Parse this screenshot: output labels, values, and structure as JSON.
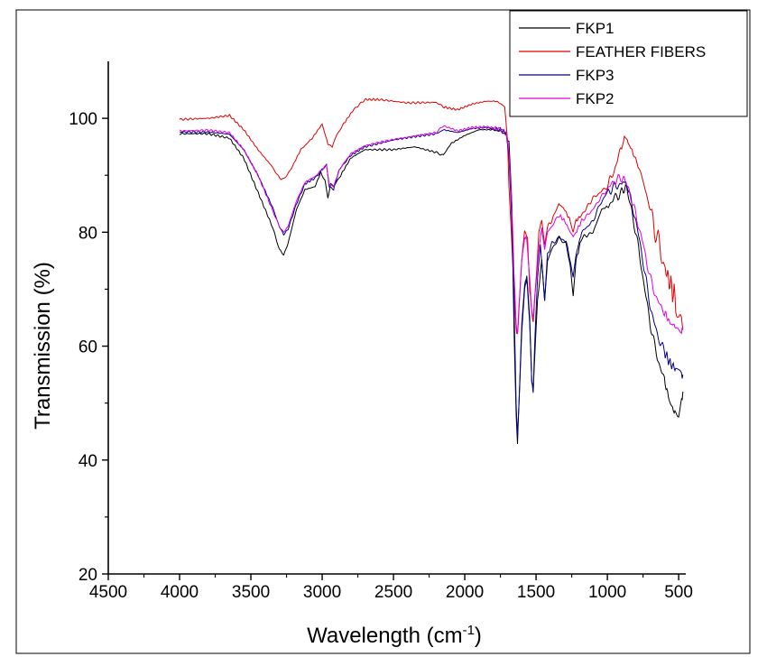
{
  "chart_data": {
    "type": "line",
    "xlabel": "Wavelength (cm",
    "xlabel_sup": "-1",
    "xlabel_end": ")",
    "ylabel": "Transmission (%)",
    "xlim": [
      4500,
      450
    ],
    "ylim": [
      20,
      110
    ],
    "x_ticks": [
      4500,
      4000,
      3500,
      3000,
      2500,
      2000,
      1500,
      1000,
      500
    ],
    "x_tick_labels": [
      "4500",
      "4000",
      "3500",
      "3000",
      "2500",
      "2000",
      "1500",
      "1000",
      "500"
    ],
    "y_ticks": [
      20,
      40,
      60,
      80,
      100
    ],
    "y_tick_labels": [
      "20",
      "40",
      "60",
      "80",
      "100"
    ],
    "grid": false,
    "legend_position": "top-right",
    "series": [
      {
        "name": "FKP1",
        "color": "#000000",
        "points": [
          [
            4000,
            97.3
          ],
          [
            3800,
            97.3
          ],
          [
            3650,
            96.5
          ],
          [
            3550,
            93
          ],
          [
            3450,
            87
          ],
          [
            3350,
            81
          ],
          [
            3300,
            77
          ],
          [
            3270,
            76
          ],
          [
            3240,
            78
          ],
          [
            3180,
            84
          ],
          [
            3120,
            87.5
          ],
          [
            3050,
            88
          ],
          [
            3010,
            90.5
          ],
          [
            2980,
            89
          ],
          [
            2960,
            86
          ],
          [
            2940,
            88.5
          ],
          [
            2920,
            88
          ],
          [
            2870,
            90
          ],
          [
            2800,
            93
          ],
          [
            2700,
            94.5
          ],
          [
            2500,
            94.5
          ],
          [
            2350,
            95
          ],
          [
            2200,
            94
          ],
          [
            2150,
            93.5
          ],
          [
            2100,
            95.5
          ],
          [
            2000,
            97
          ],
          [
            1900,
            98
          ],
          [
            1800,
            98
          ],
          [
            1720,
            97.5
          ],
          [
            1690,
            96
          ],
          [
            1670,
            85
          ],
          [
            1655,
            63
          ],
          [
            1640,
            48
          ],
          [
            1630,
            43
          ],
          [
            1620,
            50
          ],
          [
            1600,
            63
          ],
          [
            1580,
            70
          ],
          [
            1565,
            72
          ],
          [
            1545,
            65
          ],
          [
            1530,
            54
          ],
          [
            1520,
            52
          ],
          [
            1510,
            58
          ],
          [
            1490,
            68
          ],
          [
            1460,
            75
          ],
          [
            1440,
            68
          ],
          [
            1420,
            75
          ],
          [
            1390,
            77
          ],
          [
            1340,
            79
          ],
          [
            1290,
            78
          ],
          [
            1260,
            74
          ],
          [
            1240,
            69
          ],
          [
            1220,
            75
          ],
          [
            1180,
            79
          ],
          [
            1100,
            80
          ],
          [
            1040,
            84
          ],
          [
            1000,
            84.5
          ],
          [
            950,
            86
          ],
          [
            900,
            87
          ],
          [
            870,
            88
          ],
          [
            850,
            86
          ],
          [
            800,
            80
          ],
          [
            750,
            72
          ],
          [
            700,
            64
          ],
          [
            650,
            58
          ],
          [
            600,
            54
          ],
          [
            560,
            50
          ],
          [
            520,
            48
          ],
          [
            500,
            47.5
          ],
          [
            480,
            50
          ],
          [
            470,
            52
          ]
        ]
      },
      {
        "name": "FEATHER FIBERS",
        "color": "#e00000",
        "points": [
          [
            4000,
            99.8
          ],
          [
            3800,
            100
          ],
          [
            3650,
            100.5
          ],
          [
            3550,
            98
          ],
          [
            3450,
            94.5
          ],
          [
            3350,
            91.5
          ],
          [
            3300,
            89.5
          ],
          [
            3270,
            89.3
          ],
          [
            3220,
            91
          ],
          [
            3150,
            94.5
          ],
          [
            3070,
            96.5
          ],
          [
            3000,
            99
          ],
          [
            2960,
            95.5
          ],
          [
            2930,
            95
          ],
          [
            2900,
            97
          ],
          [
            2850,
            99
          ],
          [
            2780,
            101.5
          ],
          [
            2700,
            103.3
          ],
          [
            2600,
            103.3
          ],
          [
            2400,
            102.7
          ],
          [
            2200,
            102.8
          ],
          [
            2150,
            102
          ],
          [
            2050,
            101.5
          ],
          [
            1950,
            102.5
          ],
          [
            1850,
            103
          ],
          [
            1780,
            103
          ],
          [
            1750,
            102.6
          ],
          [
            1720,
            102
          ],
          [
            1700,
            96
          ],
          [
            1690,
            88
          ],
          [
            1670,
            78
          ],
          [
            1655,
            70
          ],
          [
            1640,
            63
          ],
          [
            1630,
            62
          ],
          [
            1620,
            67
          ],
          [
            1600,
            75
          ],
          [
            1580,
            80
          ],
          [
            1560,
            79
          ],
          [
            1545,
            70
          ],
          [
            1530,
            66
          ],
          [
            1520,
            64
          ],
          [
            1505,
            70
          ],
          [
            1480,
            80
          ],
          [
            1460,
            82
          ],
          [
            1440,
            78
          ],
          [
            1420,
            81
          ],
          [
            1390,
            82
          ],
          [
            1340,
            85
          ],
          [
            1300,
            84
          ],
          [
            1260,
            82
          ],
          [
            1240,
            80
          ],
          [
            1220,
            82
          ],
          [
            1180,
            83
          ],
          [
            1100,
            86
          ],
          [
            1050,
            87
          ],
          [
            1000,
            88
          ],
          [
            950,
            91
          ],
          [
            900,
            95
          ],
          [
            880,
            97.5
          ],
          [
            860,
            96
          ],
          [
            820,
            94
          ],
          [
            760,
            90
          ],
          [
            700,
            84
          ],
          [
            650,
            79
          ],
          [
            600,
            74
          ],
          [
            560,
            71
          ],
          [
            520,
            68
          ],
          [
            500,
            66
          ],
          [
            480,
            65
          ],
          [
            470,
            63
          ]
        ]
      },
      {
        "name": "FKP3",
        "color": "#00008b",
        "points": [
          [
            4000,
            97.6
          ],
          [
            3800,
            97.6
          ],
          [
            3650,
            97.2
          ],
          [
            3550,
            94.5
          ],
          [
            3450,
            90
          ],
          [
            3350,
            84.5
          ],
          [
            3300,
            81
          ],
          [
            3270,
            79.6
          ],
          [
            3240,
            80.5
          ],
          [
            3180,
            85
          ],
          [
            3120,
            88.5
          ],
          [
            3050,
            89.5
          ],
          [
            3000,
            91
          ],
          [
            2970,
            91.8
          ],
          [
            2950,
            88
          ],
          [
            2920,
            87.5
          ],
          [
            2880,
            91
          ],
          [
            2800,
            93.5
          ],
          [
            2700,
            95
          ],
          [
            2500,
            96.2
          ],
          [
            2350,
            96.8
          ],
          [
            2200,
            97.3
          ],
          [
            2150,
            98
          ],
          [
            2050,
            97.5
          ],
          [
            1950,
            98.2
          ],
          [
            1850,
            98.4
          ],
          [
            1750,
            98
          ],
          [
            1710,
            97.4
          ],
          [
            1690,
            93
          ],
          [
            1670,
            82
          ],
          [
            1655,
            68
          ],
          [
            1640,
            50
          ],
          [
            1630,
            44
          ],
          [
            1620,
            50
          ],
          [
            1600,
            64
          ],
          [
            1580,
            71
          ],
          [
            1565,
            72
          ],
          [
            1545,
            64
          ],
          [
            1530,
            54
          ],
          [
            1520,
            52
          ],
          [
            1510,
            60
          ],
          [
            1490,
            72
          ],
          [
            1470,
            78
          ],
          [
            1440,
            68
          ],
          [
            1420,
            76
          ],
          [
            1390,
            78
          ],
          [
            1340,
            79
          ],
          [
            1290,
            78.5
          ],
          [
            1260,
            75
          ],
          [
            1240,
            72
          ],
          [
            1220,
            76
          ],
          [
            1180,
            80
          ],
          [
            1100,
            82
          ],
          [
            1050,
            85
          ],
          [
            1000,
            87
          ],
          [
            950,
            88
          ],
          [
            900,
            88.5
          ],
          [
            870,
            89
          ],
          [
            850,
            87
          ],
          [
            800,
            82
          ],
          [
            750,
            75
          ],
          [
            700,
            67
          ],
          [
            650,
            62
          ],
          [
            600,
            59
          ],
          [
            560,
            57
          ],
          [
            520,
            56
          ],
          [
            500,
            55
          ],
          [
            480,
            55
          ],
          [
            470,
            55
          ]
        ]
      },
      {
        "name": "FKP2",
        "color": "#e000e0",
        "points": [
          [
            4000,
            97.8
          ],
          [
            3800,
            97.9
          ],
          [
            3650,
            97.5
          ],
          [
            3550,
            94.5
          ],
          [
            3450,
            90
          ],
          [
            3350,
            84
          ],
          [
            3300,
            81
          ],
          [
            3270,
            80
          ],
          [
            3240,
            81
          ],
          [
            3180,
            85.5
          ],
          [
            3120,
            88.8
          ],
          [
            3050,
            89.8
          ],
          [
            3000,
            91
          ],
          [
            2970,
            91.8
          ],
          [
            2950,
            88.5
          ],
          [
            2920,
            88
          ],
          [
            2880,
            91
          ],
          [
            2800,
            93.8
          ],
          [
            2700,
            95.2
          ],
          [
            2500,
            96.3
          ],
          [
            2350,
            96.9
          ],
          [
            2200,
            97.5
          ],
          [
            2150,
            98.7
          ],
          [
            2050,
            97.8
          ],
          [
            1950,
            98.4
          ],
          [
            1850,
            98.5
          ],
          [
            1750,
            98.1
          ],
          [
            1710,
            97.5
          ],
          [
            1690,
            94
          ],
          [
            1670,
            85
          ],
          [
            1655,
            73
          ],
          [
            1640,
            64
          ],
          [
            1630,
            62
          ],
          [
            1620,
            66
          ],
          [
            1600,
            75
          ],
          [
            1580,
            79
          ],
          [
            1565,
            79
          ],
          [
            1545,
            72
          ],
          [
            1530,
            66
          ],
          [
            1520,
            65
          ],
          [
            1505,
            70
          ],
          [
            1480,
            77
          ],
          [
            1460,
            81
          ],
          [
            1440,
            77
          ],
          [
            1420,
            80
          ],
          [
            1390,
            81
          ],
          [
            1340,
            83
          ],
          [
            1300,
            82
          ],
          [
            1260,
            80
          ],
          [
            1240,
            79
          ],
          [
            1220,
            80
          ],
          [
            1180,
            82
          ],
          [
            1100,
            84
          ],
          [
            1050,
            86
          ],
          [
            1000,
            87.5
          ],
          [
            950,
            89
          ],
          [
            900,
            89.5
          ],
          [
            870,
            89
          ],
          [
            850,
            87.5
          ],
          [
            800,
            83
          ],
          [
            750,
            78
          ],
          [
            700,
            72
          ],
          [
            650,
            68
          ],
          [
            600,
            66
          ],
          [
            560,
            64
          ],
          [
            520,
            63.5
          ],
          [
            500,
            63
          ],
          [
            480,
            63
          ],
          [
            470,
            62.8
          ]
        ]
      }
    ]
  }
}
